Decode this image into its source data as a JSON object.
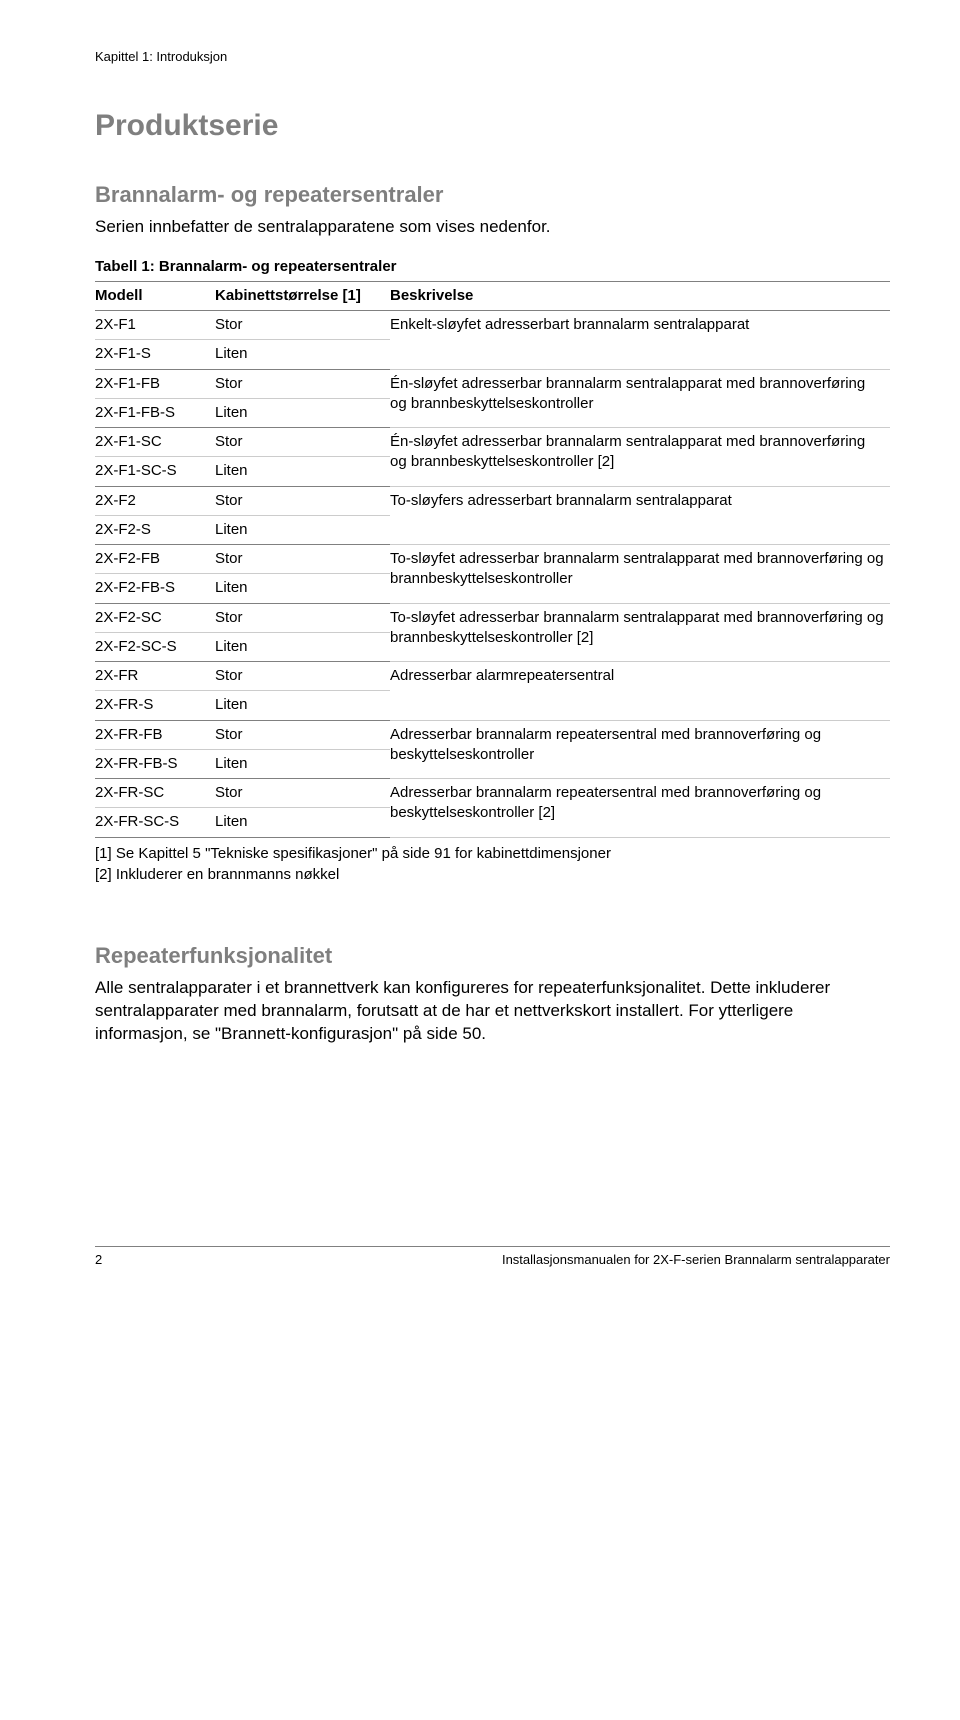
{
  "chapter_header": "Kapittel 1: Introduksjon",
  "section_title": "Produktserie",
  "subsection_title": "Brannalarm- og repeatersentraler",
  "intro_text": "Serien innbefatter de sentralapparatene som vises nedenfor.",
  "table_caption": "Tabell 1: Brannalarm- og repeatersentraler",
  "columns": {
    "model": "Modell",
    "size": "Kabinettstørrelse [1]",
    "desc": "Beskrivelse"
  },
  "rows": [
    {
      "model": "2X-F1",
      "size": "Stor",
      "desc": "Enkelt-sløyfet adresserbart brannalarm sentralapparat",
      "desc_rowspan": 2,
      "group_end": false
    },
    {
      "model": "2X-F1-S",
      "size": "Liten",
      "group_end": true
    },
    {
      "model": "2X-F1-FB",
      "size": "Stor",
      "desc": "Én-sløyfet adresserbar brannalarm sentralapparat med brannoverføring og brannbeskyttelseskontroller",
      "desc_rowspan": 2,
      "group_end": false
    },
    {
      "model": "2X-F1-FB-S",
      "size": "Liten",
      "group_end": true
    },
    {
      "model": "2X-F1-SC",
      "size": "Stor",
      "desc": "Én-sløyfet adresserbar brannalarm sentralapparat med brannoverføring og brannbeskyttelseskontroller [2]",
      "desc_rowspan": 2,
      "group_end": false
    },
    {
      "model": "2X-F1-SC-S",
      "size": "Liten",
      "group_end": true
    },
    {
      "model": "2X-F2",
      "size": "Stor",
      "desc": "To-sløyfers adresserbart brannalarm sentralapparat",
      "desc_rowspan": 2,
      "group_end": false
    },
    {
      "model": "2X-F2-S",
      "size": "Liten",
      "group_end": true
    },
    {
      "model": "2X-F2-FB",
      "size": "Stor",
      "desc": "To-sløyfet adresserbar brannalarm sentralapparat med brannoverføring og brannbeskyttelseskontroller",
      "desc_rowspan": 2,
      "group_end": false
    },
    {
      "model": "2X-F2-FB-S",
      "size": "Liten",
      "group_end": true
    },
    {
      "model": "2X-F2-SC",
      "size": "Stor",
      "desc": "To-sløyfet adresserbar brannalarm sentralapparat med brannoverføring og brannbeskyttelseskontroller [2]",
      "desc_rowspan": 2,
      "group_end": false
    },
    {
      "model": "2X-F2-SC-S",
      "size": "Liten",
      "group_end": true
    },
    {
      "model": "2X-FR",
      "size": "Stor",
      "desc": "Adresserbar alarmrepeatersentral",
      "desc_rowspan": 2,
      "group_end": false
    },
    {
      "model": "2X-FR-S",
      "size": "Liten",
      "group_end": true
    },
    {
      "model": "2X-FR-FB",
      "size": "Stor",
      "desc": "Adresserbar brannalarm repeatersentral med brannoverføring og beskyttelseskontroller",
      "desc_rowspan": 2,
      "group_end": false
    },
    {
      "model": "2X-FR-FB-S",
      "size": "Liten",
      "group_end": true
    },
    {
      "model": "2X-FR-SC",
      "size": "Stor",
      "desc": "Adresserbar brannalarm repeatersentral med brannoverføring og beskyttelseskontroller [2]",
      "desc_rowspan": 2,
      "group_end": false
    },
    {
      "model": "2X-FR-SC-S",
      "size": "Liten",
      "group_end": true
    }
  ],
  "notes": [
    "[1]  Se Kapittel 5 \"Tekniske spesifikasjoner\" på side 91 for kabinettdimensjoner",
    "[2]  Inkluderer en brannmanns nøkkel"
  ],
  "repeater_title": "Repeaterfunksjonalitet",
  "repeater_text": "Alle sentralapparater i et brannettverk kan konfigureres for repeaterfunksjonalitet. Dette inkluderer sentralapparater med brannalarm, forutsatt at de har et nettverkskort installert. For ytterligere informasjon, se \"Brannett-konfigurasjon\" på side 50.",
  "footer": {
    "page": "2",
    "doc": "Installasjonsmanualen for 2X-F-serien Brannalarm sentralapparater"
  }
}
